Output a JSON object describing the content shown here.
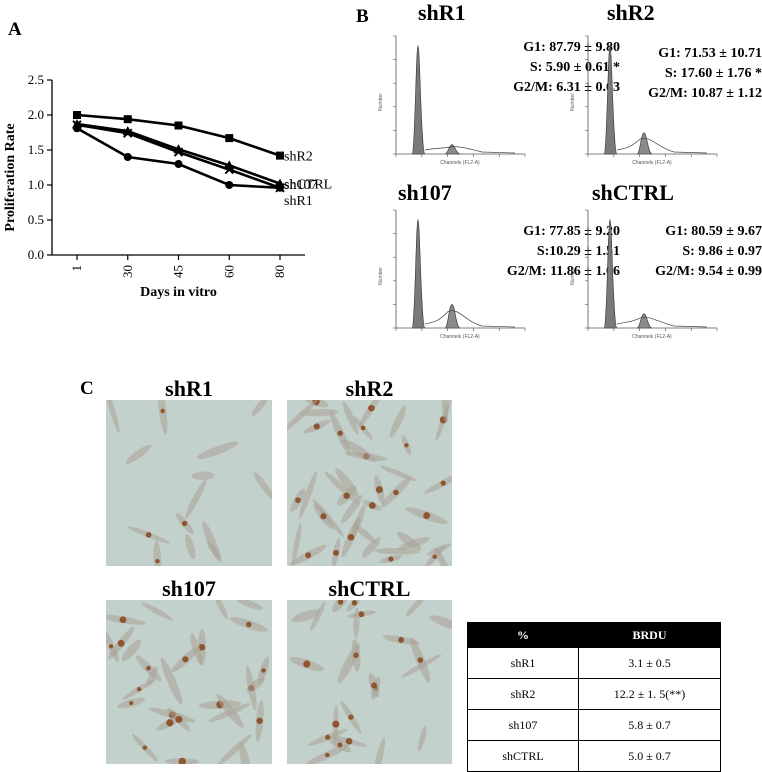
{
  "panels": {
    "a": "A",
    "b": "B",
    "c": "C"
  },
  "panel_a": {
    "chart_data": {
      "type": "line",
      "x": [
        1,
        30,
        45,
        60,
        80
      ],
      "categories": [
        "1",
        "30",
        "45",
        "60",
        "80"
      ],
      "xlabel": "Days in vitro",
      "ylabel": "Proliferation Rate",
      "ylim": [
        0,
        2.5
      ],
      "yticks": [
        "0.0",
        "0.5",
        "1.0",
        "1.5",
        "2.0",
        "2.5"
      ],
      "grid": false,
      "series": [
        {
          "name": "shR2",
          "marker": "square",
          "values": [
            2.0,
            1.94,
            1.85,
            1.67,
            1.42
          ]
        },
        {
          "name": "shCTRL",
          "marker": "triangle",
          "values": [
            1.87,
            1.77,
            1.51,
            1.28,
            1.02
          ]
        },
        {
          "name": "sh107",
          "marker": "cross",
          "values": [
            1.86,
            1.74,
            1.47,
            1.22,
            0.96
          ]
        },
        {
          "name": "shR1",
          "marker": "circle",
          "values": [
            1.81,
            1.4,
            1.3,
            1.0,
            0.96
          ]
        }
      ]
    }
  },
  "panel_b": {
    "histograms": [
      {
        "title": "shR1",
        "g1": "G1: 87.79 ± 9.80",
        "s": "S: 5.90 ± 0.61 *",
        "g2m": "G2/M: 6.31 ± 0.63",
        "g1_peak": 0.92,
        "g2_peak": 0.08
      },
      {
        "title": "shR2",
        "g1": "G1: 71.53 ± 10.71",
        "s": "S: 17.60 ± 1.76 *",
        "g2m": "G2/M: 10.87 ± 1.12",
        "g1_peak": 0.92,
        "g2_peak": 0.18
      },
      {
        "title": "sh107",
        "g1": "G1: 77.85 ± 9.20",
        "s": "S:10.29 ± 1.51",
        "g2m": "G2/M: 11.86 ± 1.66",
        "g1_peak": 0.92,
        "g2_peak": 0.2
      },
      {
        "title": "shCTRL",
        "g1": "G1: 80.59 ± 9.67",
        "s": "S: 9.86 ± 0.97",
        "g2m": "G2/M: 9.54 ± 0.99",
        "g1_peak": 0.92,
        "g2_peak": 0.12
      }
    ],
    "axis": {
      "xlabel": "Channels (FL2-A)",
      "ylabel": "Number"
    }
  },
  "panel_c": {
    "images": [
      {
        "title": "shR1"
      },
      {
        "title": "shR2"
      },
      {
        "title": "sh107"
      },
      {
        "title": "shCTRL"
      }
    ],
    "table": {
      "headers": [
        "%",
        "BRDU"
      ],
      "rows": [
        [
          "shR1",
          "3.1 ± 0.5"
        ],
        [
          "shR2",
          "12.2 ± 1. 5(**)"
        ],
        [
          "sh107",
          "5.8 ± 0.7"
        ],
        [
          "shCTRL",
          "5.0 ± 0.7"
        ]
      ]
    }
  }
}
